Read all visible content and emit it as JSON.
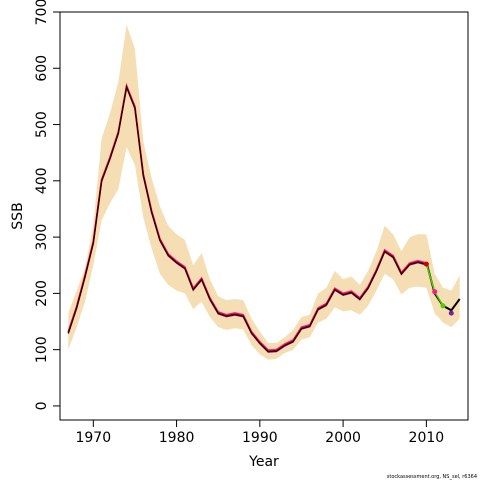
{
  "chart_data": {
    "type": "line",
    "title": "",
    "xlabel": "Year",
    "ylabel": "SSB",
    "xlim": [
      1966,
      2015
    ],
    "ylim": [
      -25,
      700
    ],
    "x_ticks": [
      1970,
      1980,
      1990,
      2000,
      2010
    ],
    "y_ticks": [
      0,
      100,
      200,
      300,
      400,
      500,
      600,
      700
    ],
    "grid": false,
    "credit": "stockassessment.org, NS_sel, r6364",
    "colors": {
      "band": "#f5deb3",
      "estimate": "#000000",
      "retro_pink": "#ff1493",
      "retro_red": "#d00000",
      "retro_purple": "#7a1fa2",
      "retro_green": "#55cc00"
    },
    "x": [
      1967,
      1968,
      1969,
      1970,
      1971,
      1972,
      1973,
      1974,
      1975,
      1976,
      1977,
      1978,
      1979,
      1980,
      1981,
      1982,
      1983,
      1984,
      1985,
      1986,
      1987,
      1988,
      1989,
      1990,
      1991,
      1992,
      1993,
      1994,
      1995,
      1996,
      1997,
      1998,
      1999,
      2000,
      2001,
      2002,
      2003,
      2004,
      2005,
      2006,
      2007,
      2008,
      2009,
      2010
    ],
    "series": [
      {
        "values": [
          130,
          175,
          230,
          290,
          400,
          440,
          485,
          567,
          530,
          410,
          345,
          295,
          268,
          255,
          245,
          207,
          225,
          190,
          165,
          160,
          163,
          160,
          130,
          112,
          97,
          98,
          108,
          115,
          138,
          142,
          172,
          180,
          207,
          198,
          202,
          190,
          210,
          240,
          275,
          265,
          235,
          252,
          256,
          252
        ]
      }
    ],
    "band": {
      "upper": [
        165,
        205,
        245,
        320,
        475,
        520,
        575,
        677,
        635,
        470,
        405,
        355,
        320,
        305,
        295,
        250,
        272,
        225,
        195,
        188,
        190,
        188,
        155,
        132,
        112,
        112,
        122,
        135,
        158,
        162,
        200,
        210,
        240,
        225,
        230,
        215,
        240,
        275,
        320,
        305,
        275,
        300,
        305,
        305
      ],
      "lower": [
        100,
        140,
        185,
        250,
        330,
        360,
        385,
        460,
        428,
        335,
        280,
        235,
        215,
        205,
        200,
        172,
        185,
        158,
        140,
        135,
        138,
        136,
        108,
        92,
        82,
        84,
        94,
        100,
        118,
        122,
        148,
        155,
        175,
        168,
        170,
        162,
        178,
        205,
        235,
        225,
        198,
        210,
        212,
        210
      ]
    },
    "tail": {
      "x": [
        2010,
        2011,
        2012,
        2013,
        2014
      ],
      "estimate": [
        255,
        200,
        178,
        170,
        190
      ],
      "upper": [
        305,
        235,
        210,
        205,
        232
      ],
      "lower": [
        210,
        165,
        148,
        140,
        155
      ]
    },
    "retro_points": [
      {
        "x": 2010,
        "y": 252,
        "color": "red"
      },
      {
        "x": 2011,
        "y": 203,
        "color": "pink"
      },
      {
        "x": 2012,
        "y": 178,
        "color": "green"
      },
      {
        "x": 2013,
        "y": 165,
        "color": "purple"
      }
    ]
  }
}
